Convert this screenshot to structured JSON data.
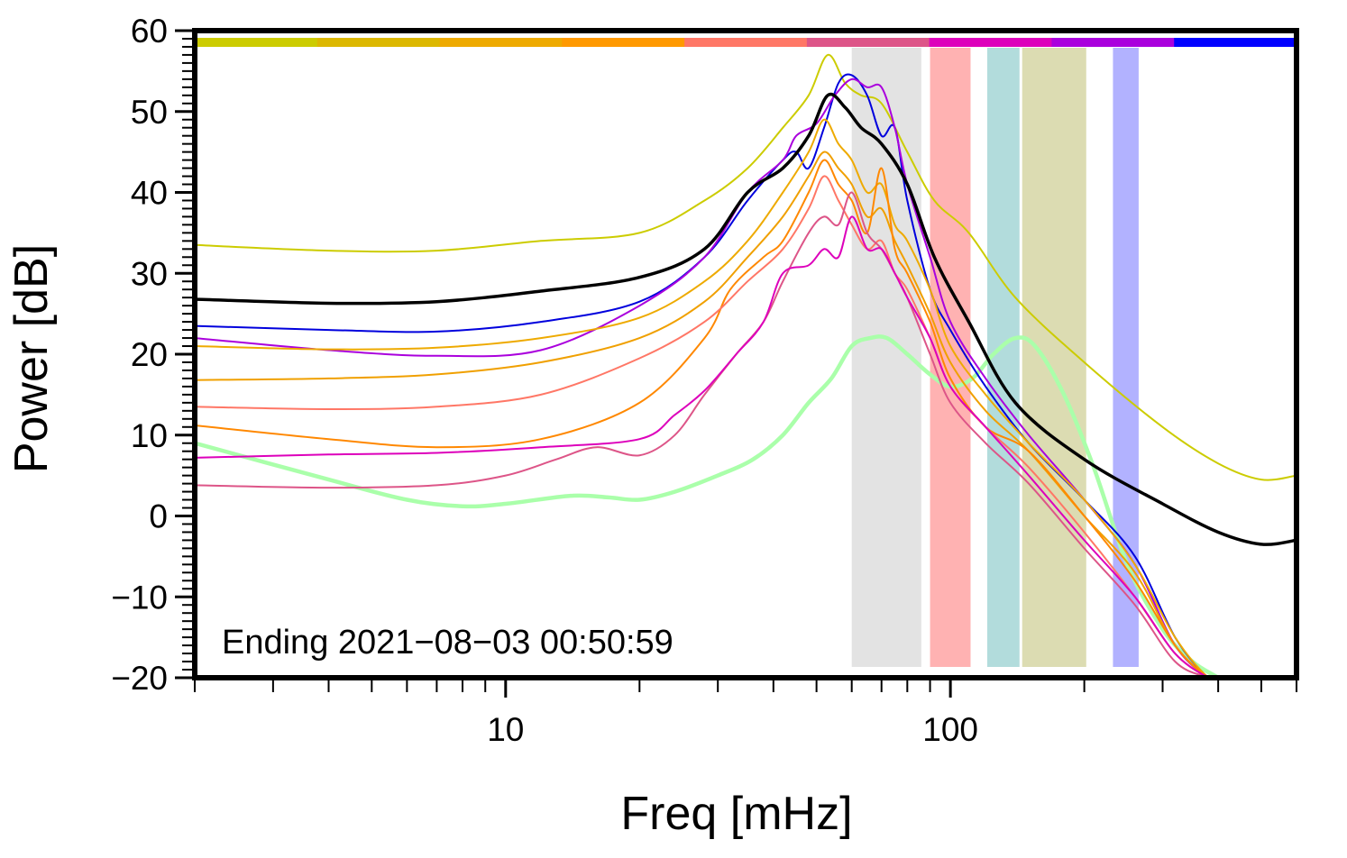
{
  "chart_data": {
    "type": "line",
    "title": "",
    "xlabel": "Freq [mHz]",
    "ylabel": "Power [dB]",
    "x_scale": "log",
    "xlim": [
      2,
      600
    ],
    "ylim": [
      -20,
      60
    ],
    "y_ticks": [
      -20,
      -10,
      0,
      10,
      20,
      30,
      40,
      50,
      60
    ],
    "y_tick_labels": [
      "−20",
      "−10",
      "0",
      "10",
      "20",
      "30",
      "40",
      "50",
      "60"
    ],
    "x_major_ticks": [
      10,
      100
    ],
    "x_tick_labels": [
      "10",
      "100"
    ],
    "annotation": "Ending 2021−08−03 00:50:59",
    "grid": false,
    "legend": "none",
    "top_color_bar": [
      "#cccc00",
      "#dcb800",
      "#eeaa00",
      "#ff9900",
      "#ff7766",
      "#dd5588",
      "#dd00bb",
      "#aa00dd",
      "#0000ff"
    ],
    "bands": [
      {
        "x0": 60,
        "x1": 86,
        "color": "#e3e3e3"
      },
      {
        "x0": 90,
        "x1": 111,
        "color": "#ffb2b2"
      },
      {
        "x0": 121,
        "x1": 143,
        "color": "#b2dcdc"
      },
      {
        "x0": 145,
        "x1": 202,
        "color": "#dcdcb2"
      },
      {
        "x0": 232,
        "x1": 265,
        "color": "#b2b2ff"
      }
    ],
    "series": [
      {
        "name": "yellow",
        "color": "#cccc00",
        "width": 2,
        "x": [
          2,
          4,
          7,
          12,
          20,
          28,
          35,
          42,
          48,
          53,
          58,
          63,
          70,
          80,
          92,
          110,
          140,
          200,
          300,
          400,
          500,
          600
        ],
        "values": [
          33.5,
          32.8,
          32.8,
          34,
          35,
          39,
          43,
          48,
          52,
          57,
          53.5,
          52,
          51,
          45,
          39,
          35,
          27,
          19,
          11,
          6.5,
          4.5,
          5
        ]
      },
      {
        "name": "black",
        "color": "#000000",
        "width": 3.5,
        "x": [
          2,
          4,
          7,
          12,
          20,
          28,
          35,
          42,
          48,
          53,
          58,
          63,
          70,
          80,
          92,
          110,
          140,
          200,
          300,
          400,
          500,
          600
        ],
        "values": [
          26.8,
          26.3,
          26.5,
          27.8,
          29.5,
          33,
          40,
          43,
          47,
          52,
          50.5,
          48,
          46,
          41,
          32,
          24,
          14,
          7,
          1.5,
          -2,
          -3.5,
          -3
        ]
      },
      {
        "name": "blue",
        "color": "#0000dd",
        "width": 2,
        "x": [
          2,
          4,
          7,
          12,
          20,
          28,
          35,
          42,
          45,
          48,
          52,
          56,
          60,
          65,
          70,
          75,
          80,
          90,
          100,
          120,
          150,
          200,
          260,
          320,
          380,
          420
        ],
        "values": [
          23.5,
          23,
          22.8,
          24,
          26.5,
          32,
          39,
          44,
          45,
          43,
          48,
          53.5,
          54.5,
          52,
          47,
          48,
          39,
          28,
          23,
          16,
          9,
          2,
          -5,
          -15,
          -20,
          -21
        ]
      },
      {
        "name": "purple",
        "color": "#aa00dd",
        "width": 2,
        "x": [
          2,
          4,
          7,
          12,
          20,
          28,
          35,
          42,
          45,
          50,
          55,
          60,
          65,
          70,
          75,
          80,
          90,
          100,
          120,
          150,
          200,
          260,
          320,
          380,
          420
        ],
        "values": [
          22,
          20.5,
          19.8,
          20.5,
          26,
          32,
          40,
          44,
          47,
          48.5,
          52,
          54,
          53,
          53,
          48,
          41,
          32,
          24,
          17,
          10,
          2,
          -6,
          -16,
          -20,
          -21
        ]
      },
      {
        "name": "orange-light",
        "color": "#eeaa00",
        "width": 2,
        "x": [
          2,
          4,
          7,
          12,
          20,
          28,
          35,
          42,
          48,
          52,
          56,
          60,
          65,
          70,
          75,
          80,
          90,
          100,
          120,
          150,
          200,
          260,
          320,
          380,
          420
        ],
        "values": [
          21,
          20.6,
          20.8,
          22,
          24.5,
          29,
          34,
          40,
          45,
          49,
          46,
          44,
          40,
          41,
          36,
          34,
          28,
          21,
          15,
          9,
          2,
          -6,
          -15,
          -20,
          -21
        ]
      },
      {
        "name": "orange-gold",
        "color": "#f0a000",
        "width": 2,
        "x": [
          2,
          4,
          7,
          12,
          20,
          28,
          35,
          42,
          48,
          52,
          56,
          60,
          65,
          70,
          75,
          80,
          90,
          100,
          120,
          150,
          200,
          260,
          320,
          380,
          420
        ],
        "values": [
          16.8,
          17,
          17.5,
          19,
          22,
          26.5,
          32,
          37,
          42,
          45,
          43,
          41,
          37,
          38,
          34,
          31,
          25,
          19,
          13,
          8,
          0,
          -7,
          -16,
          -20,
          -21
        ]
      },
      {
        "name": "orange",
        "color": "#ff8800",
        "width": 2,
        "x": [
          2,
          4,
          7,
          12,
          20,
          28,
          32,
          38,
          42,
          48,
          52,
          56,
          60,
          65,
          70,
          75,
          80,
          90,
          100,
          120,
          150,
          200,
          260,
          320,
          380,
          420
        ],
        "values": [
          11.2,
          9.5,
          8.5,
          9.5,
          14,
          22,
          28,
          32,
          34,
          40,
          44,
          41,
          39,
          35,
          43,
          33,
          30,
          24,
          17,
          11,
          8,
          0,
          -8,
          -16,
          -20,
          -21
        ]
      },
      {
        "name": "salmon",
        "color": "#ff7766",
        "width": 2,
        "x": [
          2,
          4,
          7,
          12,
          20,
          28,
          35,
          42,
          48,
          52,
          56,
          60,
          65,
          70,
          75,
          80,
          90,
          100,
          120,
          150,
          200,
          260,
          320,
          380,
          420
        ],
        "values": [
          13.5,
          13.2,
          13.5,
          15,
          19.5,
          24,
          29,
          33,
          38,
          42,
          39,
          36,
          33,
          34,
          30,
          28,
          22,
          16,
          11,
          6,
          -2,
          -10,
          -17,
          -20,
          -21
        ]
      },
      {
        "name": "rose",
        "color": "#dd5588",
        "width": 2,
        "x": [
          2,
          4,
          7,
          10,
          13,
          16,
          20,
          24,
          28,
          33,
          38,
          42,
          48,
          52,
          56,
          60,
          65,
          70,
          75,
          80,
          90,
          100,
          120,
          150,
          200,
          260,
          320,
          380,
          420
        ],
        "values": [
          3.8,
          3.5,
          3.8,
          5,
          7,
          8.5,
          7.5,
          10,
          15,
          20,
          24,
          29,
          35,
          37,
          36,
          40,
          35,
          33,
          30,
          27,
          20,
          14,
          9,
          4,
          -4,
          -11,
          -18,
          -20,
          -21
        ]
      },
      {
        "name": "magenta",
        "color": "#dd00bb",
        "width": 2,
        "x": [
          2,
          4,
          7,
          12,
          20,
          24,
          28,
          33,
          38,
          42,
          48,
          52,
          56,
          60,
          65,
          70,
          75,
          80,
          90,
          100,
          120,
          150,
          200,
          260,
          320,
          380,
          420
        ],
        "values": [
          7.2,
          7.6,
          7.8,
          8.5,
          9.5,
          12.5,
          15.5,
          20,
          24,
          30,
          31,
          33,
          32,
          37,
          33,
          33,
          30,
          27,
          22,
          16,
          11,
          5,
          -3,
          -10,
          -17,
          -20,
          -21
        ]
      },
      {
        "name": "light-green",
        "color": "#aaffaa",
        "width": 4.5,
        "x": [
          2,
          4,
          6,
          8,
          10,
          14,
          17,
          20,
          24,
          30,
          36,
          42,
          48,
          54,
          60,
          66,
          72,
          80,
          90,
          100,
          112,
          125,
          140,
          155,
          180,
          210,
          250,
          300,
          350,
          400,
          420
        ],
        "values": [
          9,
          4.5,
          2,
          1.2,
          1.5,
          2.5,
          2.3,
          2,
          3,
          5,
          7,
          10,
          14,
          17,
          21,
          22,
          22,
          20,
          17.5,
          16,
          17,
          20,
          22,
          21,
          15,
          6,
          -6,
          -14,
          -18,
          -20,
          -21
        ]
      }
    ]
  }
}
